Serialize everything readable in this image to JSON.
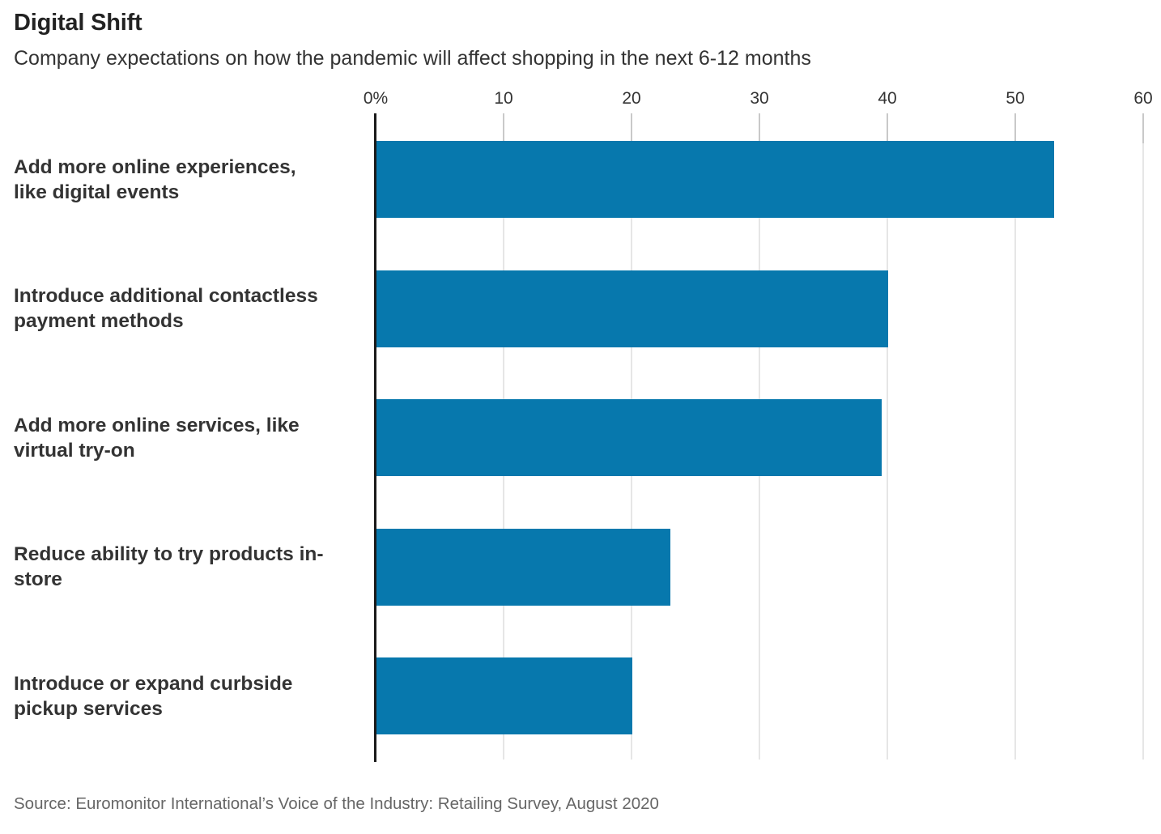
{
  "header": {
    "title": "Digital Shift",
    "subtitle": "Company expectations on how the pandemic will affect shopping in the next 6-12 months"
  },
  "chart_data": {
    "type": "bar",
    "orientation": "horizontal",
    "title": "Digital Shift",
    "subtitle": "Company expectations on how the pandemic will affect shopping in the next 6-12 months",
    "categories": [
      "Add more online experiences,\nlike digital events",
      "Introduce additional contactless\npayment methods",
      "Add more online services, like\nvirtual try-on",
      "Reduce ability to try products in-\nstore",
      "Introduce or expand curbside\npickup services"
    ],
    "values": [
      53,
      40,
      39.5,
      23,
      20
    ],
    "unit": "%",
    "x_ticks": [
      "0%",
      "10",
      "20",
      "30",
      "40",
      "50",
      "60"
    ],
    "x_tick_values": [
      0,
      10,
      20,
      30,
      40,
      50,
      60
    ],
    "xlim": [
      0,
      60
    ],
    "xlabel": "",
    "ylabel": "",
    "grid": "vertical-light",
    "legend": "none",
    "bar_color": "#0778ad",
    "gridline_color": "#e6e6e6",
    "baseline_color": "#1a1a1a"
  },
  "footer": {
    "source": "Source: Euromonitor International’s Voice of the Industry: Retailing Survey, August 2020"
  }
}
